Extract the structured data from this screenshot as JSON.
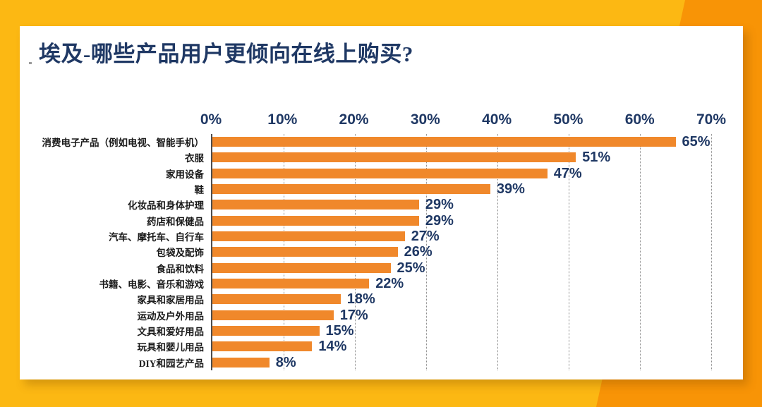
{
  "page": {
    "title": "埃及-哪些产品用户更倾向在线上购买?"
  },
  "colors": {
    "background_yellow": "#FCB813",
    "background_orange": "#F89406",
    "bar_orange": "#F0882B",
    "title_navy": "#1F3864",
    "category_text": "#1A1A1A",
    "gridline_gray": "#8C8C8C",
    "card_white": "#FFFFFF"
  },
  "chart_data": {
    "type": "bar",
    "orientation": "horizontal",
    "title": "埃及-哪些产品用户更倾向在线上购买?",
    "categories": [
      "消费电子产品（例如电视、智能手机）",
      "衣服",
      "家用设备",
      "鞋",
      "化妆品和身体护理",
      "药店和保健品",
      "汽车、摩托车、自行车",
      "包袋及配饰",
      "食品和饮料",
      "书籍、电影、音乐和游戏",
      "家具和家居用品",
      "运动及户外用品",
      "文具和爱好用品",
      "玩具和婴儿用品",
      "DIY和园艺产品"
    ],
    "values": [
      65,
      51,
      47,
      39,
      29,
      29,
      27,
      26,
      25,
      22,
      18,
      17,
      15,
      14,
      8
    ],
    "value_labels": [
      "65%",
      "51%",
      "47%",
      "39%",
      "29%",
      "29%",
      "27%",
      "26%",
      "25%",
      "22%",
      "18%",
      "17%",
      "15%",
      "14%",
      "8%"
    ],
    "x_ticks": [
      "0%",
      "10%",
      "20%",
      "30%",
      "40%",
      "50%",
      "60%",
      "70%"
    ],
    "xlim": [
      0,
      70
    ],
    "xlabel": "",
    "ylabel": "",
    "grid": "dotted-vertical",
    "legend": "none",
    "bar_color": "#F0882B",
    "value_label_color": "#1F3864"
  }
}
